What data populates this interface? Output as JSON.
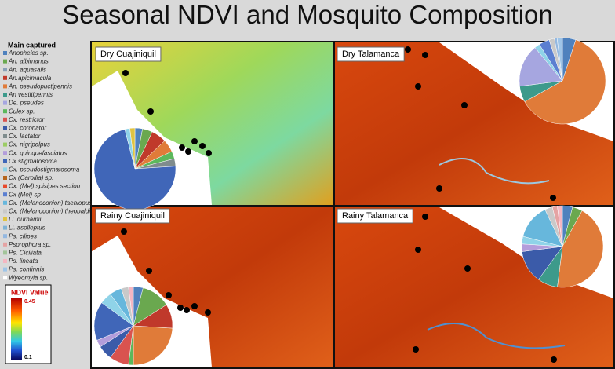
{
  "title": "Seasonal NDVI and  Mosquito Composition",
  "legend": {
    "title": "Main captured",
    "items": [
      {
        "name": "Anopheles sp.",
        "color": "#4f81bd"
      },
      {
        "name": "An. albimanus",
        "color": "#6aa84f"
      },
      {
        "name": "An. aquasalis",
        "color": "#8aa0b8"
      },
      {
        "name": "An.apicimacula",
        "color": "#c0392b"
      },
      {
        "name": "An. pseudopuctipennis",
        "color": "#e07b39"
      },
      {
        "name": "An vestitipennis",
        "color": "#3d9a8b"
      },
      {
        "name": "De. pseudes",
        "color": "#a6a6e0"
      },
      {
        "name": "Culex sp.",
        "color": "#5cb85c"
      },
      {
        "name": "Cx. restrictor",
        "color": "#d9534f"
      },
      {
        "name": "Cx. coronator",
        "color": "#3b5ba9"
      },
      {
        "name": "Cx. lactator",
        "color": "#7f8c8d"
      },
      {
        "name": "Cx. nigripalpus",
        "color": "#9ccc65"
      },
      {
        "name": "Cx. quinquefasciatus",
        "color": "#b39ddb"
      },
      {
        "name": "Cx stigmatosoma",
        "color": "#4066b8"
      },
      {
        "name": "Cx. pseudostigmatosoma",
        "color": "#8fd3e8"
      },
      {
        "name": "Cx (Carollia) sp.",
        "color": "#b5651d"
      },
      {
        "name": "Cx. (Mel) spisipes section",
        "color": "#e8492b"
      },
      {
        "name": "Cx (Mel) sp",
        "color": "#5b7fd1"
      },
      {
        "name": "Cx. (Melanoconion) taeniopus",
        "color": "#67b7dc"
      },
      {
        "name": "Cx. (Melanoconion) theobaldi",
        "color": "#c9c9c9"
      },
      {
        "name": "Li. durhamii",
        "color": "#e0c341"
      },
      {
        "name": "Li. asolleptus",
        "color": "#7fb3d5"
      },
      {
        "name": "Ps. cilipes",
        "color": "#94b8e0"
      },
      {
        "name": "Psorophora sp.",
        "color": "#e5a3a3"
      },
      {
        "name": "Ps. Ciciliata",
        "color": "#a3c49a"
      },
      {
        "name": "Ps. lineata",
        "color": "#f4b6c2"
      },
      {
        "name": "Ps. confinnis",
        "color": "#9fc5e8"
      },
      {
        "name": "Wyeomyia sp.",
        "color": "#ffffff"
      }
    ]
  },
  "colorbar": {
    "title": "NDVI Value",
    "max": 0.45,
    "min": 0.1
  },
  "panels": [
    {
      "label": "Dry Cuajiniquil",
      "pie": [
        3,
        4,
        0,
        6,
        5,
        0,
        0,
        3,
        0,
        0,
        3,
        0,
        0,
        72,
        2,
        0,
        0,
        0,
        0,
        0,
        2,
        0,
        0,
        0,
        0,
        0,
        0,
        0
      ]
    },
    {
      "label": "Dry Talamanca",
      "pie": [
        5,
        0,
        0,
        0,
        62,
        6,
        16,
        0,
        0,
        0,
        0,
        0,
        0,
        0,
        2,
        0,
        0,
        4,
        0,
        2,
        0,
        0,
        1,
        0,
        0,
        0,
        2,
        0
      ]
    },
    {
      "label": "Rainy Cuajiniquil",
      "pie": [
        4,
        12,
        0,
        10,
        24,
        0,
        0,
        2,
        8,
        6,
        0,
        0,
        3,
        16,
        5,
        0,
        0,
        0,
        5,
        3,
        0,
        0,
        0,
        0,
        0,
        2,
        0,
        0
      ]
    },
    {
      "label": "Rainy Talamanca",
      "pie": [
        4,
        4,
        0,
        0,
        44,
        8,
        0,
        0,
        0,
        13,
        0,
        0,
        3,
        0,
        3,
        0,
        0,
        0,
        14,
        3,
        0,
        0,
        0,
        2,
        0,
        2,
        0,
        0
      ]
    }
  ]
}
